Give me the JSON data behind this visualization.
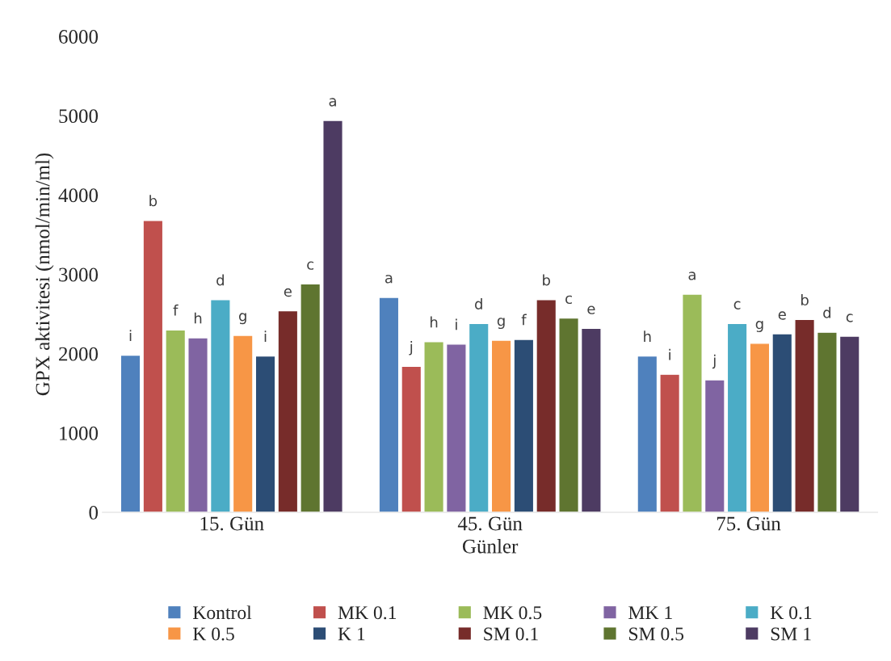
{
  "chart_data": {
    "type": "bar",
    "xlabel": "Günler",
    "ylabel": "GPX aktivitesi (nmol/min/ml)",
    "categories": [
      "15. Gün",
      "45. Gün",
      "75. Gün"
    ],
    "ylim": [
      0,
      6000
    ],
    "yticks": [
      0,
      1000,
      2000,
      3000,
      4000,
      5000,
      6000
    ],
    "grid": false,
    "legend": "bottom",
    "series": [
      {
        "name": "Kontrol",
        "color": "#4f81bd",
        "values": [
          1980,
          2710,
          1970
        ],
        "value_labels": [
          "i",
          "a",
          "h"
        ]
      },
      {
        "name": "MK 0.1",
        "color": "#c0504d",
        "values": [
          3680,
          1840,
          1740
        ],
        "value_labels": [
          "b",
          "j",
          "i"
        ]
      },
      {
        "name": "MK 0.5",
        "color": "#9bbb59",
        "values": [
          2300,
          2150,
          2750
        ],
        "value_labels": [
          "f",
          "h",
          "a"
        ]
      },
      {
        "name": "MK 1",
        "color": "#8064a2",
        "values": [
          2200,
          2120,
          1670
        ],
        "value_labels": [
          "h",
          "i",
          "j"
        ]
      },
      {
        "name": "K 0.1",
        "color": "#4bacc6",
        "values": [
          2680,
          2380,
          2380
        ],
        "value_labels": [
          "d",
          "d",
          "c"
        ]
      },
      {
        "name": "K 0.5",
        "color": "#f79646",
        "values": [
          2230,
          2170,
          2130
        ],
        "value_labels": [
          "g",
          "g",
          "g"
        ]
      },
      {
        "name": "K 1",
        "color": "#2c4d75",
        "values": [
          1970,
          2180,
          2250
        ],
        "value_labels": [
          "i",
          "f",
          "e"
        ]
      },
      {
        "name": "SM 0.1",
        "color": "#772c2a",
        "values": [
          2540,
          2680,
          2430
        ],
        "value_labels": [
          "e",
          "b",
          "b"
        ]
      },
      {
        "name": "SM 0.5",
        "color": "#5f7530",
        "values": [
          2880,
          2450,
          2270
        ],
        "value_labels": [
          "c",
          "c",
          "d"
        ]
      },
      {
        "name": "SM 1",
        "color": "#4d3b62",
        "values": [
          4940,
          2320,
          2220
        ],
        "value_labels": [
          "a",
          "e",
          "c"
        ]
      }
    ]
  }
}
